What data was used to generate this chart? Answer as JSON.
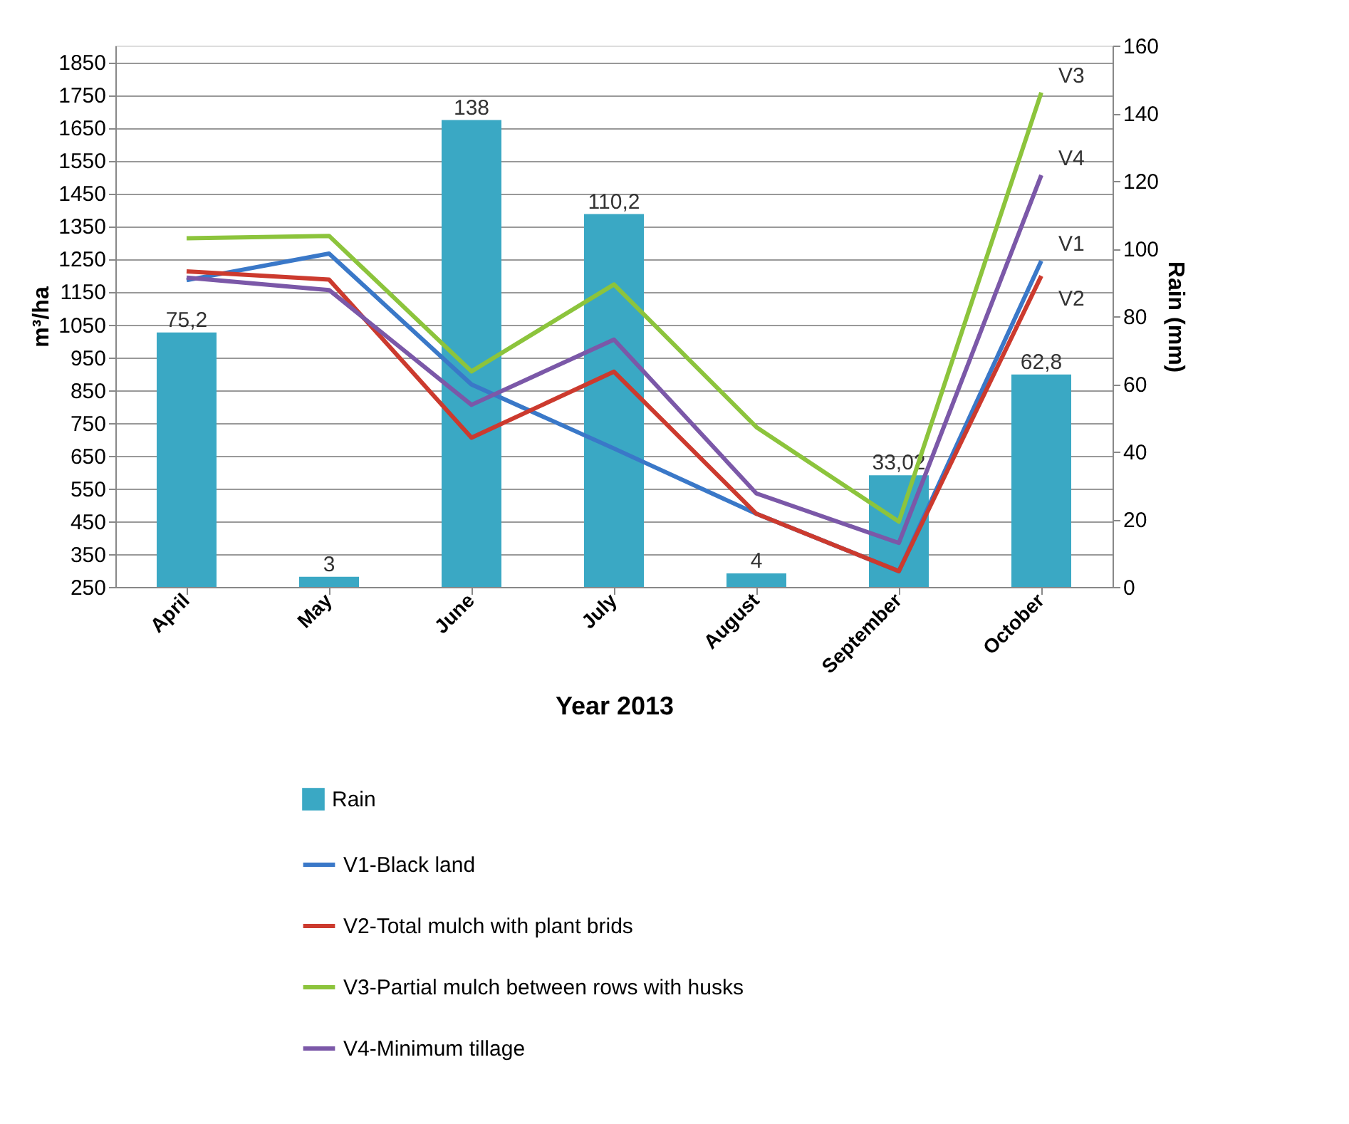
{
  "chart_data": {
    "type": "line",
    "categories": [
      "April",
      "May",
      "June",
      "July",
      "August",
      "September",
      "October"
    ],
    "xlabel": "Year 2013",
    "ylabel": "m³/ha",
    "y2label": "Rain (mm)",
    "ylim": [
      250,
      1900
    ],
    "yticks": [
      250,
      350,
      450,
      550,
      650,
      750,
      850,
      950,
      1050,
      1150,
      1250,
      1350,
      1450,
      1550,
      1650,
      1750,
      1850
    ],
    "y2lim": [
      0,
      160
    ],
    "y2ticks": [
      0,
      20,
      40,
      60,
      80,
      100,
      120,
      140,
      160
    ],
    "grid": "y",
    "legend": "bottom",
    "marker": "none",
    "line_style": "solid",
    "series": [
      {
        "name": "Rain",
        "type": "bar",
        "axis": "y2",
        "color": "#3aa8c4",
        "values": [
          75.2,
          3,
          138,
          110.2,
          4,
          33.02,
          62.8
        ],
        "value_labels": [
          "75,2",
          "3",
          "138",
          "110,2",
          "4",
          "33,02",
          "62,8"
        ]
      },
      {
        "name": "V1-Black land",
        "color": "#3a78c8",
        "values": [
          1185,
          1266,
          867,
          672,
          473,
          298,
          1244
        ]
      },
      {
        "name": "V2-Total mulch with plant brids",
        "color": "#cc3a2e",
        "values": [
          1212,
          1187,
          705,
          906,
          473,
          298,
          1198
        ]
      },
      {
        "name": "V3-Partial mulch between rows  with husks",
        "color": "#8cc43c",
        "values": [
          1313,
          1320,
          907,
          1172,
          737,
          449,
          1757
        ]
      },
      {
        "name": "V4-Minimum tillage",
        "color": "#7b58a8",
        "values": [
          1193,
          1155,
          805,
          1004,
          535,
          384,
          1505
        ]
      }
    ],
    "annotations": [
      {
        "text": "V3",
        "x": "October",
        "y": 1757
      },
      {
        "text": "V4",
        "x": "October",
        "y": 1505
      },
      {
        "text": "V1",
        "x": "October",
        "y": 1244
      },
      {
        "text": "V2",
        "x": "October",
        "y": 1198
      }
    ]
  }
}
